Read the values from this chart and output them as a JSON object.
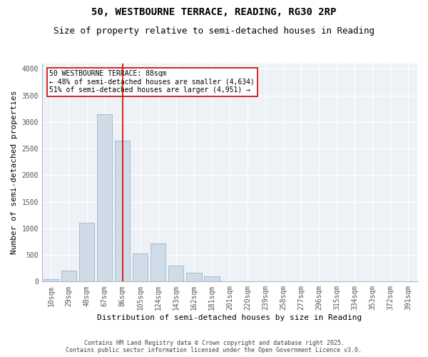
{
  "title": "50, WESTBOURNE TERRACE, READING, RG30 2RP",
  "subtitle": "Size of property relative to semi-detached houses in Reading",
  "xlabel": "Distribution of semi-detached houses by size in Reading",
  "ylabel": "Number of semi-detached properties",
  "categories": [
    "10sqm",
    "29sqm",
    "48sqm",
    "67sqm",
    "86sqm",
    "105sqm",
    "124sqm",
    "143sqm",
    "162sqm",
    "181sqm",
    "201sqm",
    "220sqm",
    "239sqm",
    "258sqm",
    "277sqm",
    "296sqm",
    "315sqm",
    "334sqm",
    "353sqm",
    "372sqm",
    "391sqm"
  ],
  "values": [
    50,
    200,
    1100,
    3150,
    2650,
    530,
    720,
    300,
    160,
    100,
    0,
    0,
    0,
    0,
    0,
    0,
    0,
    0,
    0,
    0,
    0
  ],
  "bar_color": "#cfdce8",
  "bar_edgecolor": "#9ab5c8",
  "vline_x": 4.0,
  "vline_color": "#cc0000",
  "annotation_box_color": "#cc0000",
  "annotation_text_line1": "50 WESTBOURNE TERRACE: 88sqm",
  "annotation_text_line2": "← 48% of semi-detached houses are smaller (4,634)",
  "annotation_text_line3": "51% of semi-detached houses are larger (4,951) →",
  "ylim": [
    0,
    4100
  ],
  "yticks": [
    0,
    500,
    1000,
    1500,
    2000,
    2500,
    3000,
    3500,
    4000
  ],
  "background_color": "#eef2f7",
  "footer_line1": "Contains HM Land Registry data © Crown copyright and database right 2025.",
  "footer_line2": "Contains public sector information licensed under the Open Government Licence v3.0.",
  "title_fontsize": 10,
  "subtitle_fontsize": 9,
  "axis_label_fontsize": 8,
  "tick_fontsize": 7,
  "annotation_fontsize": 7,
  "footer_fontsize": 6
}
